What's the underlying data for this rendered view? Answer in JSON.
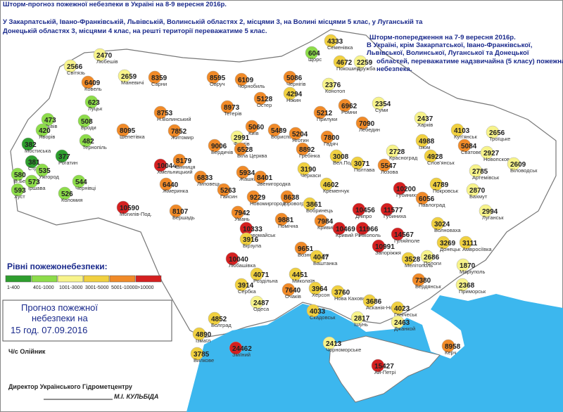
{
  "header": {
    "title": "Шторм-прогноз пожежної небезпеки в Україні на 8-9 вересня 2016р.",
    "lines": [
      "У Закарпатській, Івано-Франківській, Львівській, Волинській областях 2, місцями 3, на Волині місцями 5 клас, у Луганській та",
      "Донецькій областях 3, місцями 4 клас, на решті території переважатиме 5 клас."
    ]
  },
  "warning": {
    "title": "Шторм-попередження на 7-9 вересня 2016р.",
    "lines": [
      "В Україні, крім Закарпатської, Івано-Франківської,",
      "Львівської, Волинської, Луганської та Донецької",
      "областей, переважатиме надзвичайна (5 класу) пожежна",
      "небезпека."
    ]
  },
  "legend": {
    "title": "Рівні пожежонебезпеки:",
    "classes": [
      {
        "label": "1-400",
        "color": "#2e9e2e"
      },
      {
        "label": "401-1000",
        "color": "#8ddc4a"
      },
      {
        "label": "1001-3000",
        "color": "#f7f38a"
      },
      {
        "label": "3001-5000",
        "color": "#f0d040"
      },
      {
        "label": "5001-10000",
        "color": "#f08a28"
      },
      {
        "label": ">10000",
        "color": "#d42020"
      }
    ]
  },
  "forecast": {
    "lines": [
      "Прогноз пожежної",
      "небезпеки на",
      "15 год. 07.09.2016"
    ],
    "author": "Ч/с Олійник",
    "director": "Директор Українського Гідрометцентру",
    "signature": "М.І. КУЛЬБІДА"
  },
  "stations": [
    {
      "value": 2566,
      "name": "Світязь",
      "color": "#f7f38a"
    },
    {
      "value": 2470,
      "name": "Любешів",
      "color": "#f7f38a"
    },
    {
      "value": 6409,
      "name": "Ковель",
      "color": "#f08a28"
    },
    {
      "value": 2659,
      "name": "Маневичі",
      "color": "#f7f38a"
    },
    {
      "value": 8359,
      "name": "Сарни",
      "color": "#f08a28"
    },
    {
      "value": 8595,
      "name": "Овруч",
      "color": "#f08a28"
    },
    {
      "value": 6109,
      "name": "Чорнобиль",
      "color": "#f08a28"
    },
    {
      "value": 5086,
      "name": "Чернігів",
      "color": "#f08a28"
    },
    {
      "value": 604,
      "name": "Щорс",
      "color": "#8ddc4a"
    },
    {
      "value": 4333,
      "name": "Семенівка",
      "color": "#f0d040"
    },
    {
      "value": 4672,
      "name": "Покошичі",
      "color": "#f0d040"
    },
    {
      "value": 2259,
      "name": "Дружба",
      "color": "#f7f38a"
    },
    {
      "value": 4294,
      "name": "Ніжин",
      "color": "#f0d040"
    },
    {
      "value": 2376,
      "name": "Конотоп",
      "color": "#f7f38a"
    },
    {
      "value": 623,
      "name": "Луцьк",
      "color": "#8ddc4a"
    },
    {
      "value": 8753,
      "name": "Н.Волинський",
      "color": "#f08a28"
    },
    {
      "value": 8973,
      "name": "Тетерів",
      "color": "#f08a28"
    },
    {
      "value": 5128,
      "name": "Остер",
      "color": "#f08a28"
    },
    {
      "value": 5212,
      "name": "Прилуки",
      "color": "#f08a28"
    },
    {
      "value": 6962,
      "name": "Ромни",
      "color": "#f08a28"
    },
    {
      "value": 2354,
      "name": "Суми",
      "color": "#f7f38a"
    },
    {
      "value": 473,
      "name": "Львів",
      "color": "#8ddc4a"
    },
    {
      "value": 420,
      "name": "Яворів",
      "color": "#8ddc4a"
    },
    {
      "value": 508,
      "name": "Броди",
      "color": "#8ddc4a"
    },
    {
      "value": 8095,
      "name": "Шепетівка",
      "color": "#f08a28"
    },
    {
      "value": 7852,
      "name": "Житомир",
      "color": "#f08a28"
    },
    {
      "value": 5060,
      "name": "Київ",
      "color": "#f08a28"
    },
    {
      "value": 5489,
      "name": "Бориспіль",
      "color": "#f08a28"
    },
    {
      "value": 5204,
      "name": "Яготин",
      "color": "#f08a28"
    },
    {
      "value": 7800,
      "name": "Гадяч",
      "color": "#f08a28"
    },
    {
      "value": 7090,
      "name": "Лебедин",
      "color": "#f08a28"
    },
    {
      "value": 2437,
      "name": "Харків",
      "color": "#f7f38a"
    },
    {
      "value": 4103,
      "name": "Куп'янськ",
      "color": "#f0d040"
    },
    {
      "value": 2656,
      "name": "Троїцьке",
      "color": "#f7f38a"
    },
    {
      "value": 382,
      "name": "Мостиська",
      "color": "#2e9e2e"
    },
    {
      "value": 381,
      "name": "Стрий",
      "color": "#2e9e2e"
    },
    {
      "value": 377,
      "name": "Рогатин",
      "color": "#2e9e2e"
    },
    {
      "value": 482,
      "name": "Тернопіль",
      "color": "#8ddc4a"
    },
    {
      "value": 9006,
      "name": "Бердичів",
      "color": "#f08a28"
    },
    {
      "value": 2991,
      "name": "Фастів",
      "color": "#f7f38a"
    },
    {
      "value": 6528,
      "name": "Біла Церква",
      "color": "#f08a28"
    },
    {
      "value": 8892,
      "name": "Гребінка",
      "color": "#f08a28"
    },
    {
      "value": 3008,
      "name": "Вел.Поділ",
      "color": "#f0d040"
    },
    {
      "value": 2728,
      "name": "Красноград",
      "color": "#f7f38a"
    },
    {
      "value": 4988,
      "name": "Ізюм",
      "color": "#f0d040"
    },
    {
      "value": 5084,
      "name": "Сватове",
      "color": "#f08a28"
    },
    {
      "value": 2927,
      "name": "Новопсков",
      "color": "#f7f38a"
    },
    {
      "value": 4928,
      "name": "Слов'янськ",
      "color": "#f0d040"
    },
    {
      "value": 10044,
      "name": "Хмельницький",
      "color": "#d42020"
    },
    {
      "value": 8179,
      "name": "Вінниця",
      "color": "#f08a28"
    },
    {
      "value": 6833,
      "name": "Липовець",
      "color": "#f08a28"
    },
    {
      "value": 5934,
      "name": "Жашків",
      "color": "#f08a28"
    },
    {
      "value": 8401,
      "name": "Звенигородка",
      "color": "#f08a28"
    },
    {
      "value": 3190,
      "name": "Черкаси",
      "color": "#f0d040"
    },
    {
      "value": 4602,
      "name": "Кременчук",
      "color": "#f0d040"
    },
    {
      "value": 3071,
      "name": "Полтава",
      "color": "#f0d040"
    },
    {
      "value": 5547,
      "name": "Лозова",
      "color": "#f08a28"
    },
    {
      "value": 2785,
      "name": "Артемівськ",
      "color": "#f7f38a"
    },
    {
      "value": 2609,
      "name": "Біловодськ",
      "color": "#f7f38a"
    },
    {
      "value": 580,
      "name": "В.Березна",
      "color": "#8ddc4a"
    },
    {
      "value": 535,
      "name": "Ужгород",
      "color": "#8ddc4a"
    },
    {
      "value": 573,
      "name": "Іршава",
      "color": "#8ddc4a"
    },
    {
      "value": 593,
      "name": "Хуст",
      "color": "#8ddc4a"
    },
    {
      "value": 526,
      "name": "Коломия",
      "color": "#8ddc4a"
    },
    {
      "value": 544,
      "name": "Чернівці",
      "color": "#8ddc4a"
    },
    {
      "value": 6440,
      "name": "Жмеринка",
      "color": "#f08a28"
    },
    {
      "value": 5263,
      "name": "Гайсин",
      "color": "#f08a28"
    },
    {
      "value": 9229,
      "name": "Новомиргород",
      "color": "#f08a28"
    },
    {
      "value": 8638,
      "name": "Кіровоград",
      "color": "#f08a28"
    },
    {
      "value": 10200,
      "name": "Губиниха",
      "color": "#d42020"
    },
    {
      "value": 6056,
      "name": "Павлоград",
      "color": "#f08a28"
    },
    {
      "value": 4789,
      "name": "Покровськ",
      "color": "#f0d040"
    },
    {
      "value": 2870,
      "name": "Бахмут",
      "color": "#f7f38a"
    },
    {
      "value": 2994,
      "name": "Луганськ",
      "color": "#f7f38a"
    },
    {
      "value": 10590,
      "name": "Могилів-Под.",
      "color": "#d42020"
    },
    {
      "value": 8107,
      "name": "Бершадь",
      "color": "#f08a28"
    },
    {
      "value": 7942,
      "name": "Умань",
      "color": "#f08a28"
    },
    {
      "value": 3861,
      "name": "Бобринець",
      "color": "#f0d040"
    },
    {
      "value": 10456,
      "name": "Дніпро",
      "color": "#d42020"
    },
    {
      "value": 11577,
      "name": "Губиниха",
      "color": "#d42020"
    },
    {
      "value": 10333,
      "name": "Первомайськ",
      "color": "#d42020"
    },
    {
      "value": 9881,
      "name": "Помічна",
      "color": "#f08a28"
    },
    {
      "value": 7984,
      "name": "Кривий Ріг",
      "color": "#f08a28"
    },
    {
      "value": 10469,
      "name": "Кривий Ріг",
      "color": "#d42020"
    },
    {
      "value": 11966,
      "name": "Нікополь",
      "color": "#d42020"
    },
    {
      "value": 10991,
      "name": "Запоріжжя",
      "color": "#d42020"
    },
    {
      "value": 14567,
      "name": "Гуляйполе",
      "color": "#d42020"
    },
    {
      "value": 3024,
      "name": "Волноваха",
      "color": "#f0d040"
    },
    {
      "value": 3269,
      "name": "Донецьк",
      "color": "#f0d040"
    },
    {
      "value": 3111,
      "name": "Амвросіївка",
      "color": "#f0d040"
    },
    {
      "value": 1870,
      "name": "Маріуполь",
      "color": "#f7f38a"
    },
    {
      "value": 9651,
      "name": "Вознесенськ",
      "color": "#f08a28"
    },
    {
      "value": 4047,
      "name": "Баштанка",
      "color": "#f0d040"
    },
    {
      "value": 10040,
      "name": "Любашівка",
      "color": "#d42020"
    },
    {
      "value": 3916,
      "name": "Бірзула",
      "color": "#f0d040"
    },
    {
      "value": 2686,
      "name": "Пологи",
      "color": "#f7f38a"
    },
    {
      "value": 3528,
      "name": "Мелітополь",
      "color": "#f0d040"
    },
    {
      "value": 4071,
      "name": "Роздільна",
      "color": "#f0d040"
    },
    {
      "value": 3914,
      "name": "Сербка",
      "color": "#f0d040"
    },
    {
      "value": 4451,
      "name": "Миколаїв",
      "color": "#f0d040"
    },
    {
      "value": 3964,
      "name": "Херсон",
      "color": "#f0d040"
    },
    {
      "value": 3760,
      "name": "Нова Каховка",
      "color": "#f0d040"
    },
    {
      "value": 7380,
      "name": "Бердянськ",
      "color": "#f08a28"
    },
    {
      "value": 2368,
      "name": "Приморськ",
      "color": "#f7f38a"
    },
    {
      "value": 7640,
      "name": "Очаків",
      "color": "#f08a28"
    },
    {
      "value": 2487,
      "name": "Одеса",
      "color": "#f7f38a"
    },
    {
      "value": 3686,
      "name": "Асканія-Нова",
      "color": "#f0d040"
    },
    {
      "value": 4023,
      "name": "Генічеськ",
      "color": "#f0d040"
    },
    {
      "value": 4033,
      "name": "Скадовськ",
      "color": "#f0d040"
    },
    {
      "value": 2817,
      "name": "Ішунь",
      "color": "#f7f38a"
    },
    {
      "value": 2463,
      "name": "Джанкой",
      "color": "#f7f38a"
    },
    {
      "value": 4852,
      "name": "Болград",
      "color": "#f0d040"
    },
    {
      "value": 4890,
      "name": "Ізмаїл",
      "color": "#f0d040"
    },
    {
      "value": 3785,
      "name": "Вилкове",
      "color": "#f0d040"
    },
    {
      "value": 24462,
      "name": "Зміїний",
      "color": "#d42020"
    },
    {
      "value": 2413,
      "name": "Чорноморське",
      "color": "#f7f38a"
    },
    {
      "value": 8958,
      "name": "Керч",
      "color": "#f08a28"
    },
    {
      "value": 15427,
      "name": "Ай-Петрі",
      "color": "#d42020"
    }
  ]
}
